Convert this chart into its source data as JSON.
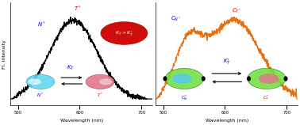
{
  "left_panel": {
    "line_color": "#000000",
    "xlabel": "Wavelength (nm)",
    "ylabel": "Fl. Intensity",
    "x_ticks": [
      500,
      600,
      700
    ],
    "label_N_color": "#0000cc",
    "label_T_color": "#cc0000",
    "ellipse_N_color": "#70d8f0",
    "ellipse_T_color": "#e08090",
    "inequality_bg": "#cc0000",
    "KT_color": "#0000cc"
  },
  "right_panel": {
    "line_color": "#e87010",
    "xlabel": "Wavelength (nm)",
    "x_ticks": [
      500,
      600,
      700
    ],
    "label_CN_color": "#0000cc",
    "label_CT_color": "#cc0000",
    "green_color": "#70e040",
    "green_edge": "#408020",
    "KT_color": "#0000cc"
  },
  "background_color": "#ffffff"
}
